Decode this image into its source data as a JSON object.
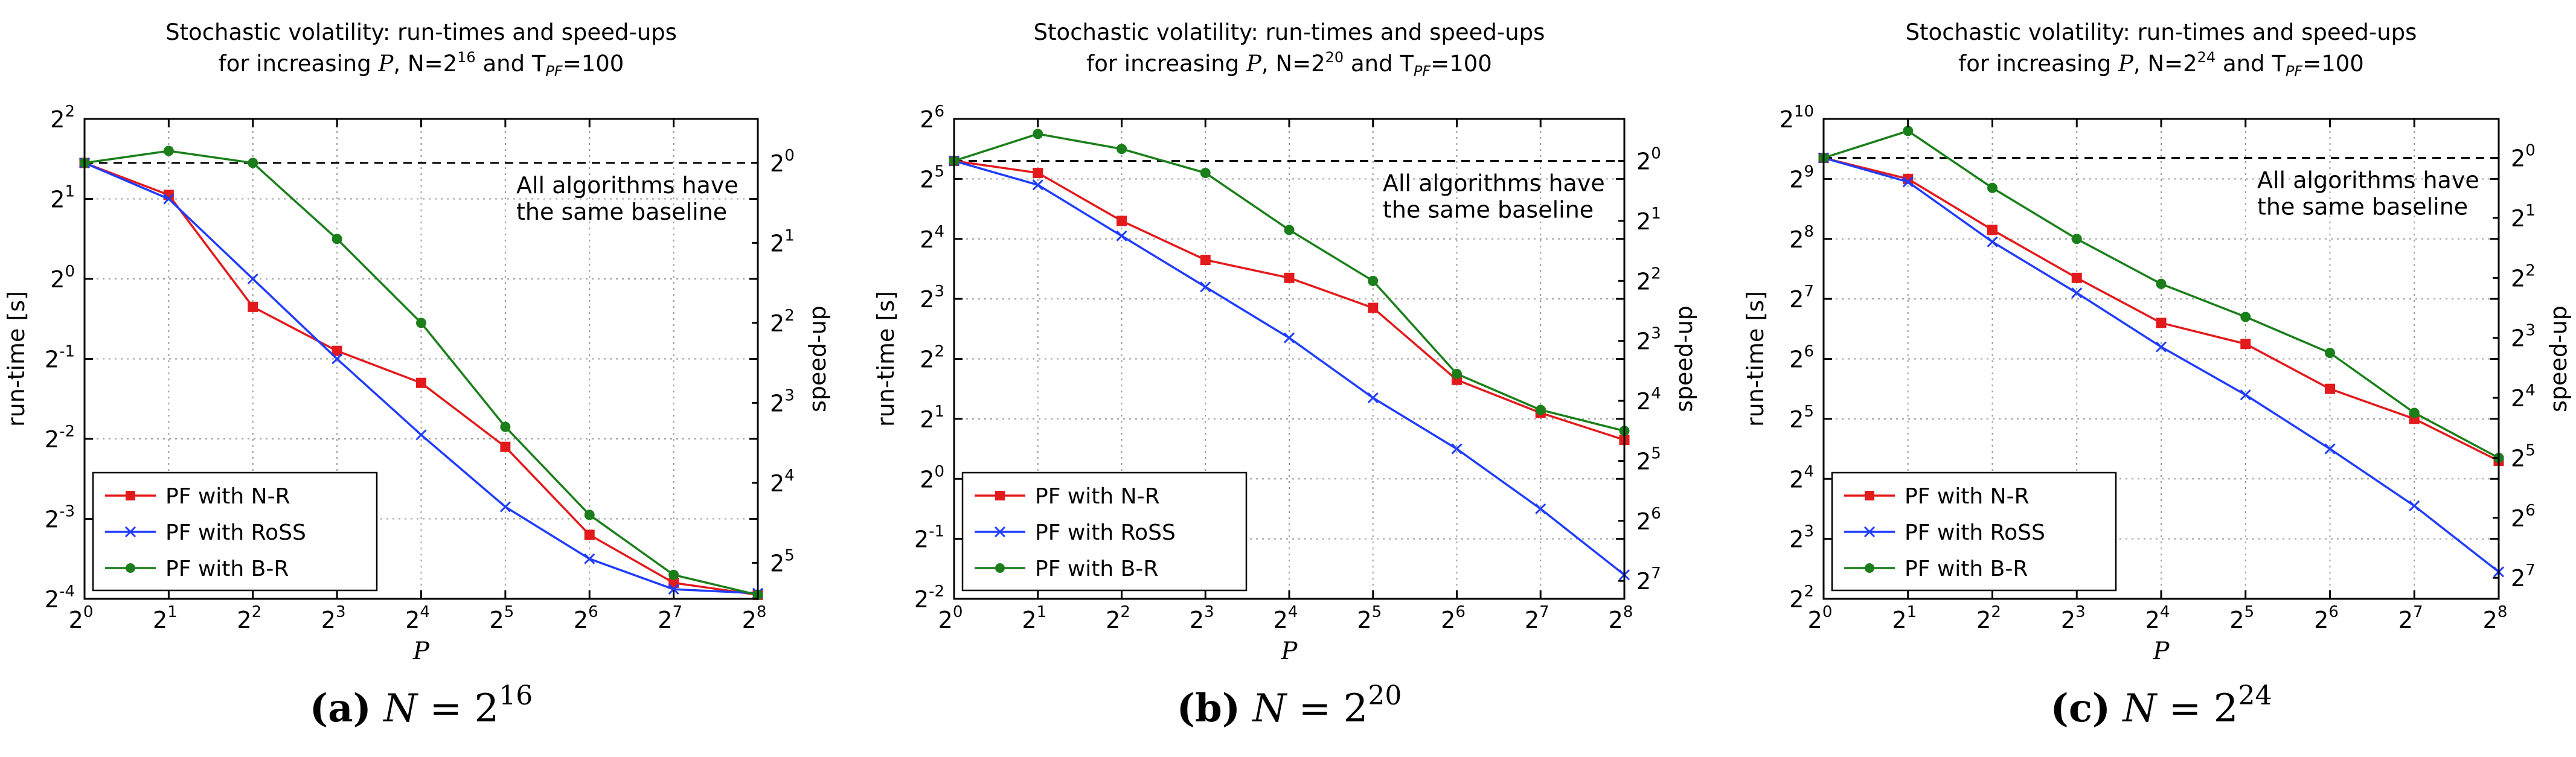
{
  "chart_data": [
    {
      "type": "line",
      "title_line1": "Stochastic volatility: run-times and speed-ups",
      "title_line2": "for increasing P, N=2^16 and T_PF=100",
      "title_line2_prefix": "for increasing ",
      "title_line2_var": "P",
      "title_line2_mid": ", N=2",
      "title_line2_exp": "16",
      "title_line2_suffix": " and T",
      "title_line2_sub": "PF",
      "title_line2_end": "=100",
      "xlabel": "P",
      "ylabel": "run-time [s]",
      "y2label": "speed-up",
      "x_log2": [
        0,
        1,
        2,
        3,
        4,
        5,
        6,
        7,
        8
      ],
      "x_tick_labels": [
        "2^0",
        "2^1",
        "2^2",
        "2^3",
        "2^4",
        "2^5",
        "2^6",
        "2^7",
        "2^8"
      ],
      "ylim_log2": [
        -4,
        2
      ],
      "y_ticks_log2": [
        -4,
        -3,
        -2,
        -1,
        0,
        1,
        2
      ],
      "y2_ticks_log2": [
        0,
        1,
        2,
        3,
        4,
        5
      ],
      "baseline_log2": 1.45,
      "annotation_line1": "All algorithms have",
      "annotation_line2": "the same baseline",
      "legend_position": "lower-left",
      "series": [
        {
          "name": "PF with N-R",
          "color": "#e31a1c",
          "marker": "square",
          "y_log2": [
            1.45,
            1.05,
            -0.35,
            -0.9,
            -1.3,
            -2.1,
            -3.2,
            -3.8,
            -3.95
          ]
        },
        {
          "name": "PF with RoSS",
          "color": "#1f3cff",
          "marker": "x",
          "y_log2": [
            1.45,
            1.0,
            0.0,
            -1.0,
            -1.95,
            -2.85,
            -3.5,
            -3.88,
            -3.93
          ]
        },
        {
          "name": "PF with B-R",
          "color": "#1a7f1a",
          "marker": "circle",
          "y_log2": [
            1.45,
            1.6,
            1.45,
            0.5,
            -0.55,
            -1.85,
            -2.95,
            -3.7,
            -3.95
          ]
        }
      ],
      "caption_label": "(a)",
      "caption_var": "N",
      "caption_eq": "= 2",
      "caption_exp": "16"
    },
    {
      "type": "line",
      "title_line1": "Stochastic volatility: run-times and speed-ups",
      "title_line2": "for increasing P, N=2^20 and T_PF=100",
      "title_line2_prefix": "for increasing ",
      "title_line2_var": "P",
      "title_line2_mid": ", N=2",
      "title_line2_exp": "20",
      "title_line2_suffix": " and T",
      "title_line2_sub": "PF",
      "title_line2_end": "=100",
      "xlabel": "P",
      "ylabel": "run-time [s]",
      "y2label": "speed-up",
      "x_log2": [
        0,
        1,
        2,
        3,
        4,
        5,
        6,
        7,
        8
      ],
      "x_tick_labels": [
        "2^0",
        "2^1",
        "2^2",
        "2^3",
        "2^4",
        "2^5",
        "2^6",
        "2^7",
        "2^8"
      ],
      "ylim_log2": [
        -2,
        6
      ],
      "y_ticks_log2": [
        -2,
        -1,
        0,
        1,
        2,
        3,
        4,
        5,
        6
      ],
      "y2_ticks_log2": [
        0,
        1,
        2,
        3,
        4,
        5,
        6,
        7
      ],
      "baseline_log2": 5.3,
      "annotation_line1": "All algorithms have",
      "annotation_line2": "the same baseline",
      "legend_position": "lower-left",
      "series": [
        {
          "name": "PF with N-R",
          "color": "#e31a1c",
          "marker": "square",
          "y_log2": [
            5.3,
            5.1,
            4.3,
            3.65,
            3.35,
            2.85,
            1.65,
            1.1,
            0.65
          ]
        },
        {
          "name": "PF with RoSS",
          "color": "#1f3cff",
          "marker": "x",
          "y_log2": [
            5.3,
            4.9,
            4.05,
            3.2,
            2.35,
            1.35,
            0.5,
            -0.5,
            -1.6
          ]
        },
        {
          "name": "PF with B-R",
          "color": "#1a7f1a",
          "marker": "circle",
          "y_log2": [
            5.3,
            5.75,
            5.5,
            5.1,
            4.15,
            3.3,
            1.75,
            1.15,
            0.8
          ]
        }
      ],
      "caption_label": "(b)",
      "caption_var": "N",
      "caption_eq": "= 2",
      "caption_exp": "20"
    },
    {
      "type": "line",
      "title_line1": "Stochastic volatility: run-times and speed-ups",
      "title_line2": "for increasing P, N=2^24 and T_PF=100",
      "title_line2_prefix": "for increasing ",
      "title_line2_var": "P",
      "title_line2_mid": ", N=2",
      "title_line2_exp": "24",
      "title_line2_suffix": " and T",
      "title_line2_sub": "PF",
      "title_line2_end": "=100",
      "xlabel": "P",
      "ylabel": "run-time [s]",
      "y2label": "speed-up",
      "x_log2": [
        0,
        1,
        2,
        3,
        4,
        5,
        6,
        7,
        8
      ],
      "x_tick_labels": [
        "2^0",
        "2^1",
        "2^2",
        "2^3",
        "2^4",
        "2^5",
        "2^6",
        "2^7",
        "2^8"
      ],
      "ylim_log2": [
        2,
        10
      ],
      "y_ticks_log2": [
        2,
        3,
        4,
        5,
        6,
        7,
        8,
        9,
        10
      ],
      "y2_ticks_log2": [
        0,
        1,
        2,
        3,
        4,
        5,
        6,
        7
      ],
      "baseline_log2": 9.35,
      "annotation_line1": "All algorithms have",
      "annotation_line2": "the same baseline",
      "legend_position": "lower-left",
      "series": [
        {
          "name": "PF with N-R",
          "color": "#e31a1c",
          "marker": "square",
          "y_log2": [
            9.35,
            9.0,
            8.15,
            7.35,
            6.6,
            6.25,
            5.5,
            5.0,
            4.3
          ]
        },
        {
          "name": "PF with RoSS",
          "color": "#1f3cff",
          "marker": "x",
          "y_log2": [
            9.35,
            8.95,
            7.95,
            7.1,
            6.2,
            5.4,
            4.5,
            3.55,
            2.45
          ]
        },
        {
          "name": "PF with B-R",
          "color": "#1a7f1a",
          "marker": "circle",
          "y_log2": [
            9.35,
            9.8,
            8.85,
            8.0,
            7.25,
            6.7,
            6.1,
            5.1,
            4.35
          ]
        }
      ],
      "caption_label": "(c)",
      "caption_var": "N",
      "caption_eq": "= 2",
      "caption_exp": "24"
    }
  ]
}
